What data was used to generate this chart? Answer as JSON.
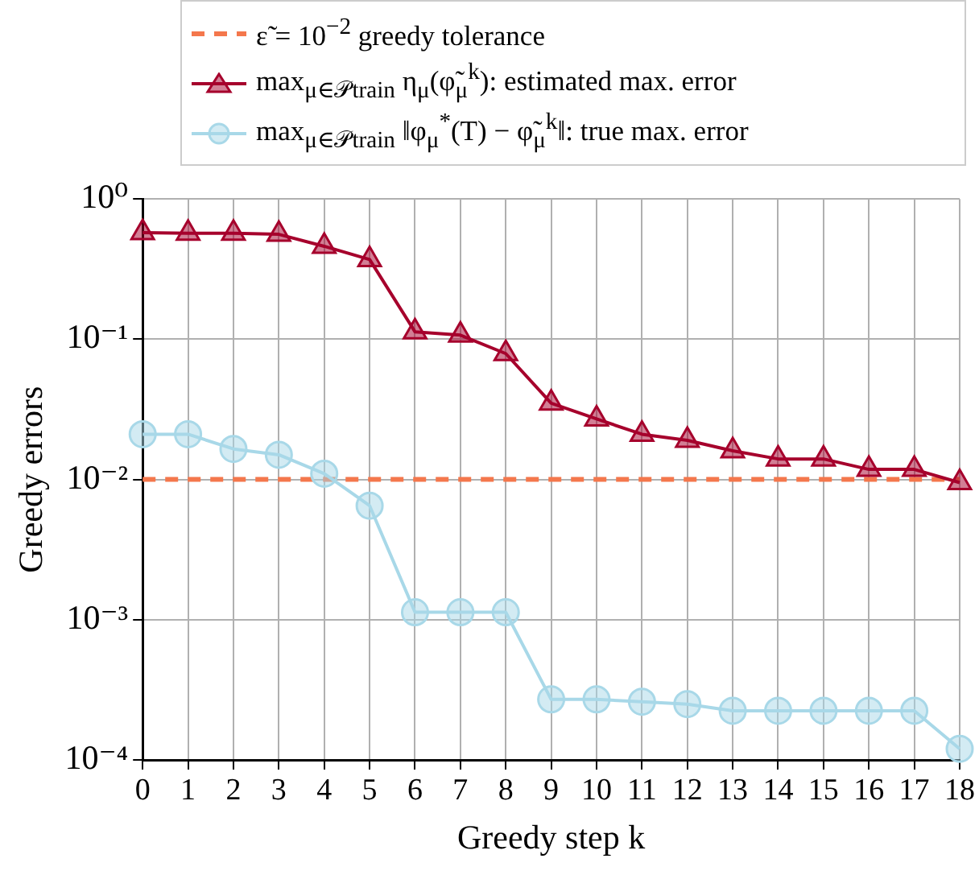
{
  "chart_data": {
    "type": "line",
    "xlabel": "Greedy step k",
    "ylabel": "Greedy errors",
    "x": [
      0,
      1,
      2,
      3,
      4,
      5,
      6,
      7,
      8,
      9,
      10,
      11,
      12,
      13,
      14,
      15,
      16,
      17,
      18
    ],
    "xlim": [
      0,
      18
    ],
    "xticks": [
      0,
      1,
      2,
      3,
      4,
      5,
      6,
      7,
      8,
      9,
      10,
      11,
      12,
      13,
      14,
      15,
      16,
      17,
      18
    ],
    "ylim": [
      0.0001,
      1
    ],
    "yticks": [
      {
        "value": 0.0001,
        "label": "10⁻⁴"
      },
      {
        "value": 0.001,
        "label": "10⁻³"
      },
      {
        "value": 0.01,
        "label": "10⁻²"
      },
      {
        "value": 0.1,
        "label": "10⁻¹"
      },
      {
        "value": 1,
        "label": "10⁰"
      }
    ],
    "log": "y",
    "grid": true,
    "legend": "top",
    "ref_lines": [
      {
        "axis": "y",
        "value": 0.01,
        "label": "ε̃ = 10$^{−2}$ greedy tolerance",
        "color": "#f4774c",
        "line_style": "dashed"
      }
    ],
    "series": [
      {
        "name": "max$_{μ∈𝒫train}$ η$_{μ}$(φ̃$_{μ}$$^{k}$): estimated max. error",
        "color": "#a6002c",
        "marker": "triangle",
        "values": [
          0.575,
          0.57,
          0.57,
          0.56,
          0.46,
          0.37,
          0.113,
          0.107,
          0.079,
          0.035,
          0.027,
          0.021,
          0.019,
          0.016,
          0.014,
          0.014,
          0.0118,
          0.0118,
          0.0095
        ]
      },
      {
        "name": "max$_{μ∈𝒫train}$ ‖φ$_{μ}$$^{*}$(T) − φ̃$_{μ}$$^{k}$‖: true max. error",
        "color": "#a8d8e8",
        "marker": "circle",
        "values": [
          0.021,
          0.021,
          0.0165,
          0.015,
          0.011,
          0.0065,
          0.00113,
          0.00113,
          0.00113,
          0.00027,
          0.00027,
          0.00026,
          0.00025,
          0.000224,
          0.000224,
          0.000224,
          0.000224,
          0.000224,
          0.00012
        ]
      }
    ]
  }
}
